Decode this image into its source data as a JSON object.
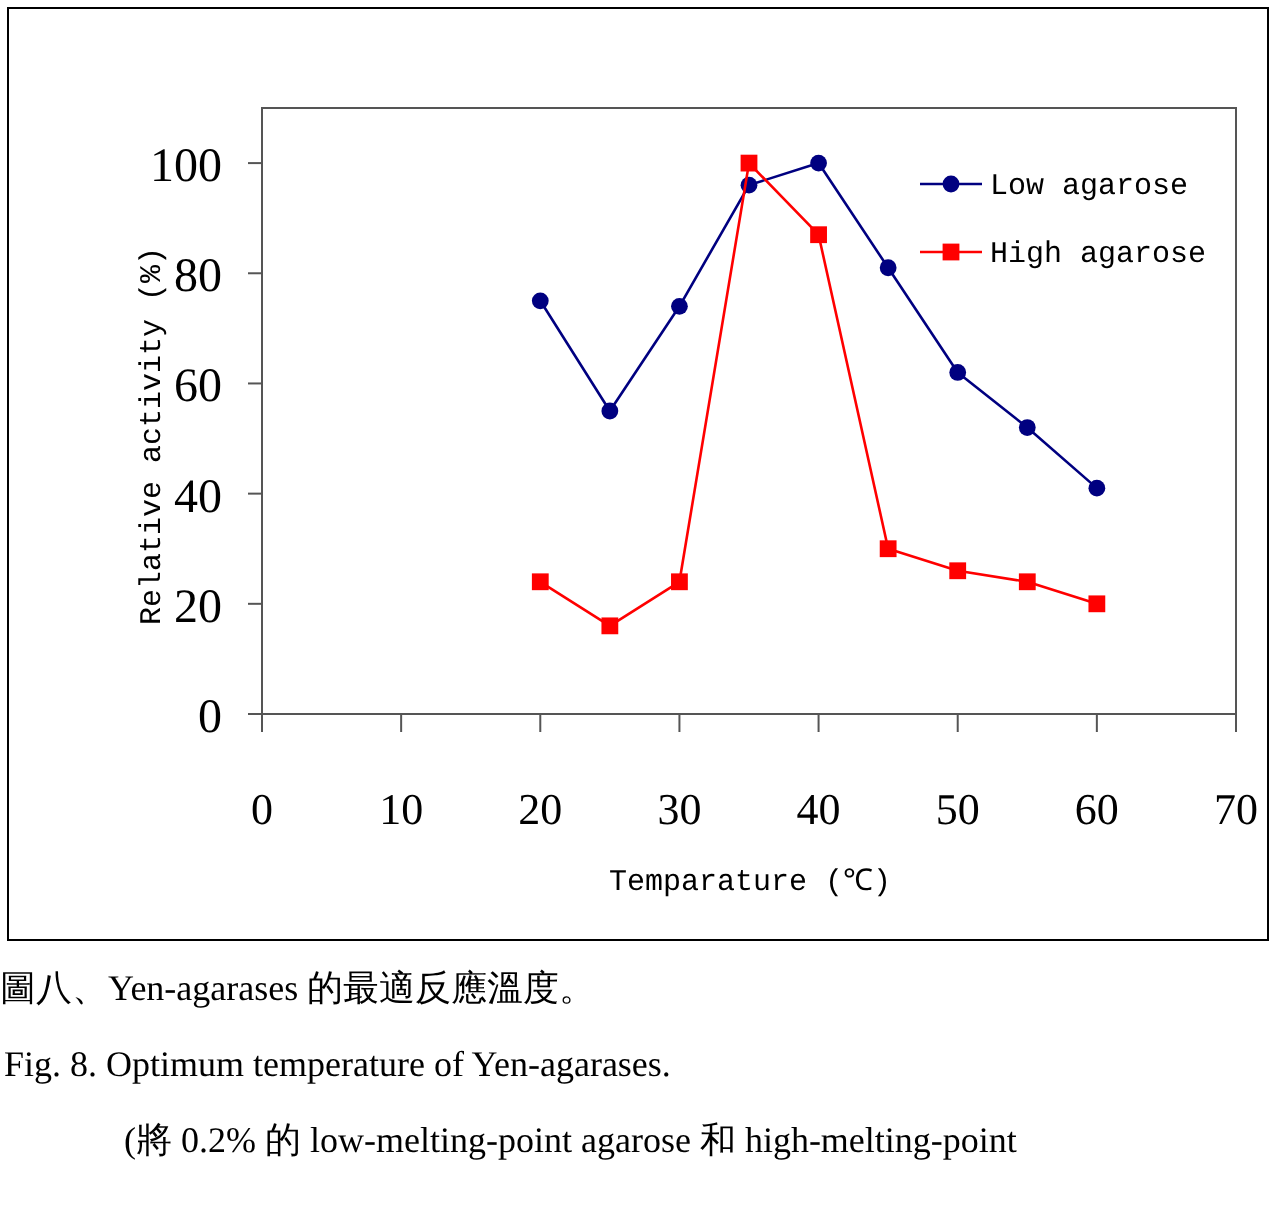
{
  "chart_data": {
    "type": "line",
    "x": [
      20,
      25,
      30,
      35,
      40,
      45,
      50,
      55,
      60
    ],
    "series": [
      {
        "name": "Low agarose",
        "color": "#000080",
        "marker": "circle",
        "values": [
          75,
          55,
          74,
          96,
          100,
          81,
          62,
          52,
          41
        ]
      },
      {
        "name": "High agarose",
        "color": "#ff0000",
        "marker": "square",
        "values": [
          24,
          16,
          24,
          100,
          87,
          30,
          26,
          24,
          20
        ]
      }
    ],
    "xlabel": "Temparature (℃)",
    "ylabel": "Relative activity (%)",
    "xlim": [
      0,
      70
    ],
    "xticks": [
      0,
      10,
      20,
      30,
      40,
      50,
      60,
      70
    ],
    "ylim": [
      0,
      110
    ],
    "yticks": [
      0,
      20,
      40,
      60,
      80,
      100
    ],
    "legend": "top right",
    "annotations": [
      "圖八、Yen-agarases 的最適反應溫度。",
      "Fig. 8. Optimum temperature of Yen-agarases.",
      "(將 0.2% 的 low-melting-point agarose 和 high-melting-point"
    ]
  }
}
